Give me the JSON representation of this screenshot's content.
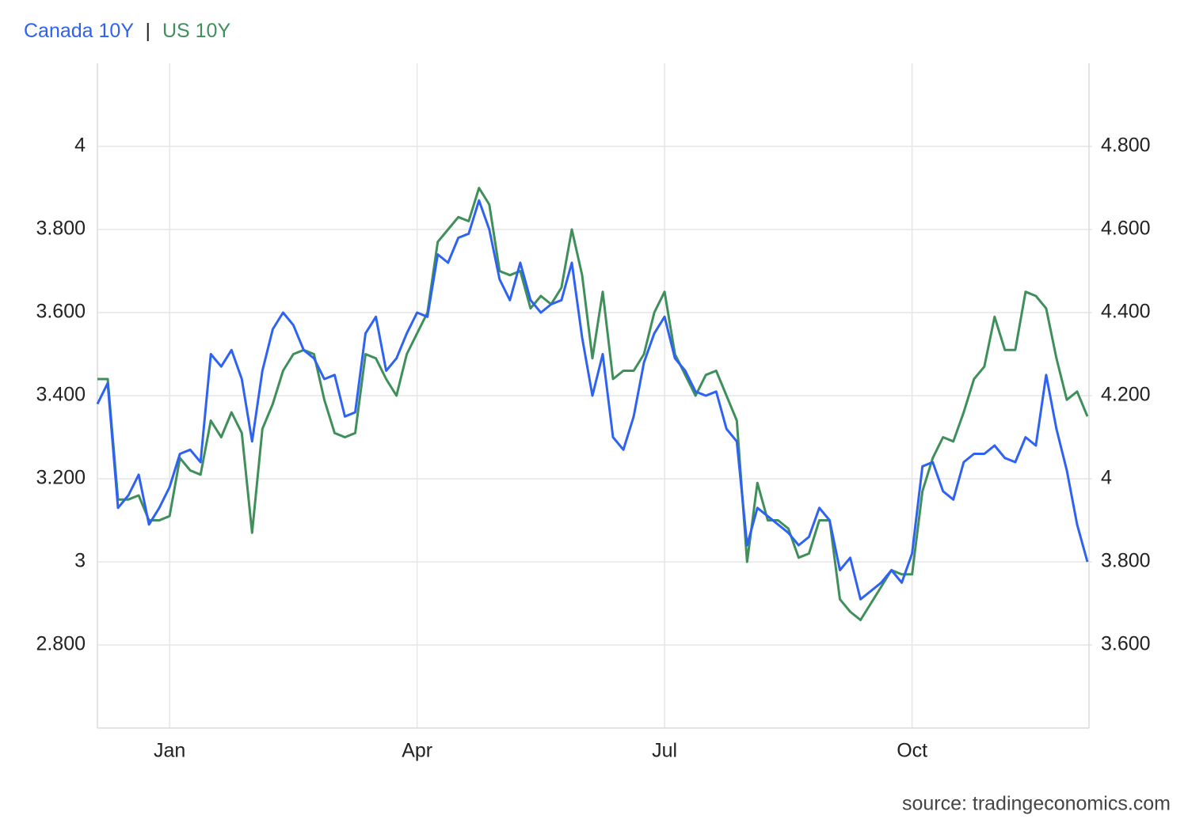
{
  "chart_data": {
    "type": "line",
    "legend_separator": "|",
    "source": "source: tradingeconomics.com",
    "categories": [
      null,
      null,
      null,
      null,
      null,
      null,
      null,
      "Jan",
      null,
      null,
      null,
      null,
      null,
      null,
      null,
      null,
      null,
      null,
      null,
      null,
      null,
      null,
      null,
      null,
      null,
      null,
      null,
      null,
      null,
      null,
      null,
      "Apr",
      null,
      null,
      null,
      null,
      null,
      null,
      null,
      null,
      null,
      null,
      null,
      null,
      null,
      null,
      null,
      null,
      null,
      null,
      null,
      null,
      null,
      null,
      null,
      "Jul",
      null,
      null,
      null,
      null,
      null,
      null,
      null,
      null,
      null,
      null,
      null,
      null,
      null,
      null,
      null,
      null,
      null,
      null,
      null,
      null,
      null,
      null,
      null,
      "Oct",
      null,
      null,
      null,
      null,
      null,
      null,
      null,
      null,
      null,
      null,
      null,
      null,
      null,
      null,
      null,
      null,
      null
    ],
    "series": [
      {
        "name": "Canada 10Y",
        "color": "#2e62f2",
        "axis": "y",
        "values": [
          3.38,
          3.43,
          3.13,
          3.16,
          3.21,
          3.09,
          3.13,
          3.18,
          3.26,
          3.27,
          3.24,
          3.5,
          3.47,
          3.51,
          3.44,
          3.29,
          3.46,
          3.56,
          3.6,
          3.57,
          3.51,
          3.49,
          3.44,
          3.45,
          3.35,
          3.36,
          3.55,
          3.59,
          3.46,
          3.49,
          3.55,
          3.6,
          3.59,
          3.74,
          3.72,
          3.78,
          3.79,
          3.87,
          3.8,
          3.68,
          3.63,
          3.72,
          3.63,
          3.6,
          3.62,
          3.63,
          3.72,
          3.54,
          3.4,
          3.5,
          3.3,
          3.27,
          3.35,
          3.48,
          3.55,
          3.59,
          3.49,
          3.46,
          3.41,
          3.4,
          3.41,
          3.32,
          3.29,
          3.04,
          3.13,
          3.11,
          3.09,
          3.07,
          3.04,
          3.06,
          3.13,
          3.1,
          2.98,
          3.01,
          2.91,
          2.93,
          2.95,
          2.98,
          2.95,
          3.02,
          3.23,
          3.24,
          3.17,
          3.15,
          3.24,
          3.26,
          3.26,
          3.28,
          3.25,
          3.24,
          3.3,
          3.28,
          3.45,
          3.32,
          3.22,
          3.09,
          3.0
        ]
      },
      {
        "name": "US 10Y",
        "color": "#3f8f5b",
        "axis": "y2",
        "values": [
          4.24,
          4.24,
          3.95,
          3.95,
          3.96,
          3.9,
          3.9,
          3.91,
          4.05,
          4.02,
          4.01,
          4.14,
          4.1,
          4.16,
          4.11,
          3.87,
          4.12,
          4.18,
          4.26,
          4.3,
          4.31,
          4.3,
          4.19,
          4.11,
          4.1,
          4.11,
          4.3,
          4.29,
          4.24,
          4.2,
          4.3,
          4.35,
          4.4,
          4.57,
          4.6,
          4.63,
          4.62,
          4.7,
          4.66,
          4.5,
          4.49,
          4.5,
          4.41,
          4.44,
          4.42,
          4.46,
          4.6,
          4.49,
          4.29,
          4.45,
          4.24,
          4.26,
          4.26,
          4.3,
          4.4,
          4.45,
          4.3,
          4.25,
          4.2,
          4.25,
          4.26,
          4.2,
          4.14,
          3.8,
          3.99,
          3.9,
          3.9,
          3.88,
          3.81,
          3.82,
          3.9,
          3.9,
          3.71,
          3.68,
          3.66,
          3.7,
          3.74,
          3.78,
          3.77,
          3.77,
          3.97,
          4.05,
          4.1,
          4.09,
          4.16,
          4.24,
          4.27,
          4.39,
          4.31,
          4.31,
          4.45,
          4.44,
          4.41,
          4.29,
          4.19,
          4.21,
          4.15
        ]
      }
    ],
    "ylim": [
      2.6,
      4.2
    ],
    "yticks": [
      {
        "value": 2.8,
        "label": "2.800"
      },
      3,
      {
        "value": 3.2,
        "label": "3.200"
      },
      {
        "value": 3.4,
        "label": "3.400"
      },
      {
        "value": 3.6,
        "label": "3.600"
      },
      {
        "value": 3.8,
        "label": "3.800"
      },
      4
    ],
    "y2lim": [
      3.4,
      5.0
    ],
    "y2ticks": [
      {
        "value": 3.6,
        "label": "3.600"
      },
      {
        "value": 3.8,
        "label": "3.800"
      },
      4,
      {
        "value": 4.2,
        "label": "4.200"
      },
      {
        "value": 4.4,
        "label": "4.400"
      },
      {
        "value": 4.6,
        "label": "4.600"
      },
      {
        "value": 4.8,
        "label": "4.800"
      }
    ],
    "grid": true
  }
}
